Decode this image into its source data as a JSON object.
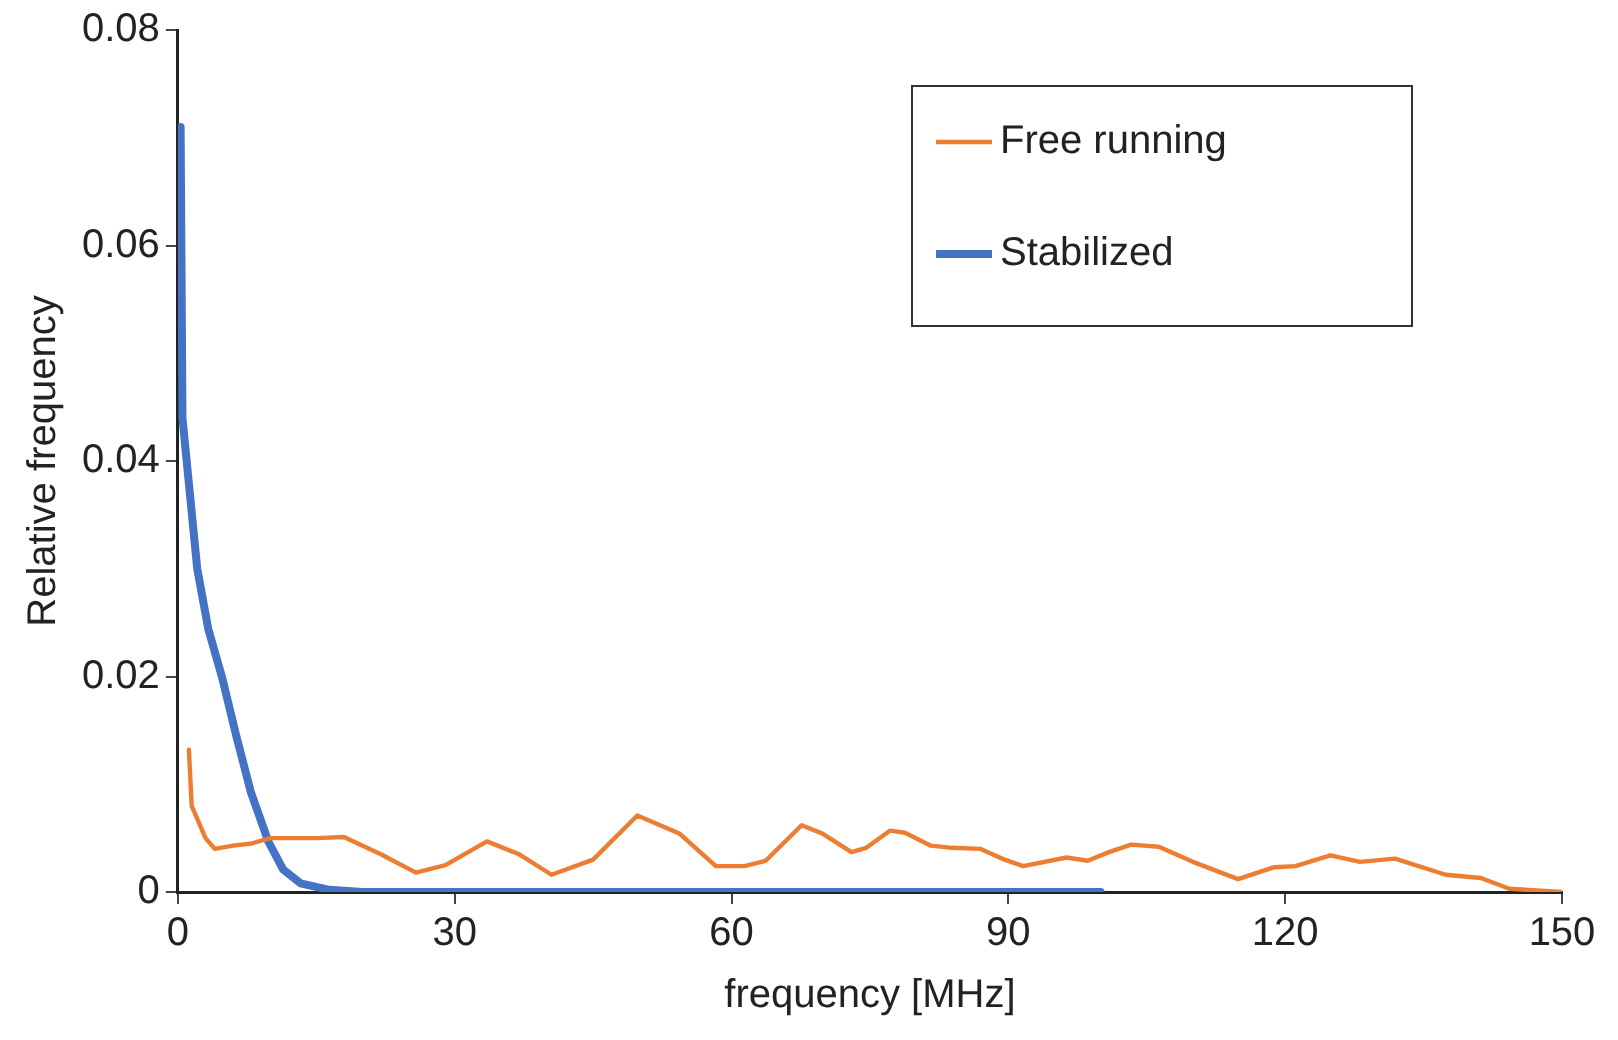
{
  "chart_data": {
    "type": "line",
    "xlabel": "frequency [MHz]",
    "ylabel": "Relative frequency",
    "xlim": [
      0,
      150
    ],
    "xticks": [
      0,
      30,
      60,
      90,
      120,
      150
    ],
    "ylim": [
      0,
      0.08
    ],
    "yticks": [
      0,
      0.02,
      0.04,
      0.06,
      0.08
    ],
    "grid": false,
    "legend": "top right",
    "marker": "none",
    "line_style": "solid",
    "series": [
      {
        "name": "Free running",
        "color": "#ed7d31",
        "x": [
          1.2,
          1.5,
          3,
          4,
          6,
          8,
          10,
          12,
          15,
          18,
          22,
          25.8,
          29,
          33.5,
          37,
          40.5,
          45,
          49.8,
          54.4,
          58.3,
          61.4,
          63.7,
          67.6,
          69.9,
          73,
          74.6,
          77.2,
          78.8,
          81.6,
          83.9,
          87,
          89.3,
          91.6,
          96.3,
          98.6,
          100.9,
          103.3,
          106.3,
          110,
          114.9,
          118.8,
          121.1,
          124.9,
          128.1,
          131.9,
          137.4,
          141.2,
          144.3,
          150
        ],
        "values": [
          0.0132,
          0.008,
          0.005,
          0.004,
          0.0043,
          0.0045,
          0.005,
          0.005,
          0.005,
          0.0051,
          0.0035,
          0.0018,
          0.0025,
          0.0047,
          0.0035,
          0.0016,
          0.003,
          0.0071,
          0.0054,
          0.0024,
          0.0024,
          0.0029,
          0.0062,
          0.0054,
          0.0037,
          0.0041,
          0.0057,
          0.0055,
          0.0043,
          0.0041,
          0.004,
          0.0031,
          0.0024,
          0.0032,
          0.0029,
          0.0037,
          0.0044,
          0.0042,
          0.0028,
          0.0012,
          0.0023,
          0.0024,
          0.0034,
          0.0028,
          0.0031,
          0.0016,
          0.0013,
          0.0003,
          0
        ]
      },
      {
        "name": "Stabilized",
        "color": "#4472c4",
        "x": [
          0.3,
          0.5,
          1.3,
          2.1,
          3.3,
          4.8,
          6.3,
          7.9,
          9.8,
          11.4,
          13.3,
          16.4,
          20,
          100
        ],
        "values": [
          0.071,
          0.044,
          0.037,
          0.03,
          0.0244,
          0.0199,
          0.0146,
          0.0093,
          0.0047,
          0.0021,
          0.0008,
          0.0002,
          0,
          0
        ]
      }
    ]
  }
}
